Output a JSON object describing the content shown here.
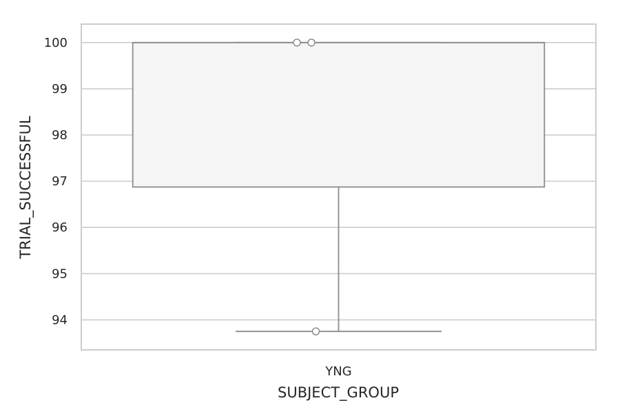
{
  "chart_data": {
    "type": "box",
    "categories": [
      "YNG"
    ],
    "xlabel": "SUBJECT_GROUP",
    "ylabel": "TRIAL_SUCCESSFUL",
    "ylim": [
      93.35,
      100.4
    ],
    "yticks": [
      94,
      95,
      96,
      97,
      98,
      99,
      100
    ],
    "grid": "horizontal",
    "box_color": "#f5f5f5",
    "line_color": "#8c8c8c",
    "series": [
      {
        "category": "YNG",
        "whisker_low": 93.75,
        "q1": 96.875,
        "median": 100,
        "q3": 100,
        "whisker_high": 100,
        "fliers": [
          93.75,
          100,
          100
        ]
      }
    ]
  }
}
